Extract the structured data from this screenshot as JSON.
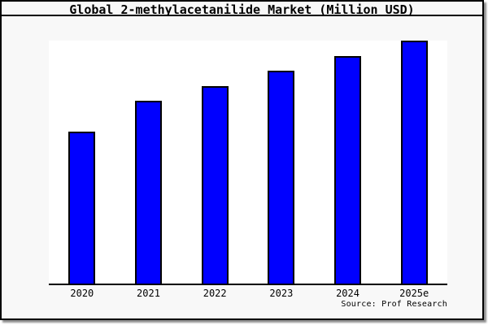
{
  "frame": {
    "background": "#f8f8f8",
    "border_color": "#000000",
    "shadow_color": "#8f8f8f"
  },
  "chart_data": {
    "type": "bar",
    "title": "Global 2-methylacetanilide Market (Million USD)",
    "categories": [
      "2020",
      "2021",
      "2022",
      "2023",
      "2024",
      "2025e"
    ],
    "values": [
      62.6,
      75.1,
      81.3,
      87.7,
      93.8,
      100
    ],
    "values_unit": "percent of tallest bar (no numeric y-axis shown in chart)",
    "ylim": [
      0,
      100
    ],
    "xlabel": "",
    "ylabel": "",
    "y_axis_labels_shown": false,
    "grid": false,
    "legend": false,
    "bar_color": "#0000ff",
    "bar_border_color": "#000000",
    "plot_background": "#ffffff",
    "source_label": "Source: Prof Research"
  }
}
